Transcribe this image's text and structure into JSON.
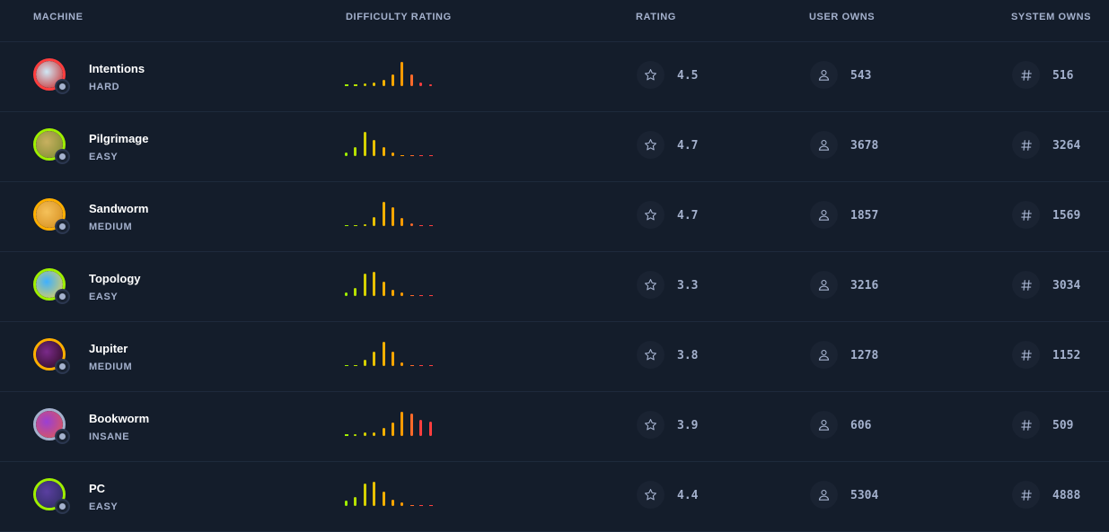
{
  "header": {
    "machine": "MACHINE",
    "difficulty_rating": "DIFFICULTY RATING",
    "rating": "RATING",
    "user_owns": "USER OWNS",
    "system_owns": "SYSTEM OWNS"
  },
  "colors": {
    "background": "#141d2b",
    "divider": "#1e2a3c",
    "muted_text": "#a4b1cd",
    "easy": "#9fef00",
    "medium": "#ffaf00",
    "hard": "#ff3e3e",
    "insane": "#a4b1cd"
  },
  "difficulty_bar_colors": [
    "#9fef00",
    "#b5e000",
    "#d4d000",
    "#e8c000",
    "#f5b000",
    "#ffa500",
    "#ff9a00",
    "#ff6a2a",
    "#ff3e3e",
    "#ff3e3e"
  ],
  "machines": [
    {
      "name": "Intentions",
      "difficulty": "HARD",
      "ring_color": "#ff3e3e",
      "avatar_colors": [
        "#cfe8f5",
        "#c91f1f"
      ],
      "difficulty_votes": [
        0.06,
        0.06,
        0.1,
        0.12,
        0.25,
        0.42,
        0.9,
        0.45,
        0.12,
        0.08
      ],
      "rating": "4.5",
      "user_owns": "543",
      "system_owns": "516"
    },
    {
      "name": "Pilgrimage",
      "difficulty": "EASY",
      "ring_color": "#9fef00",
      "avatar_colors": [
        "#c8b060",
        "#7a8a30"
      ],
      "difficulty_votes": [
        0.15,
        0.35,
        0.9,
        0.6,
        0.35,
        0.12,
        0.04,
        0.02,
        0.02,
        0.02
      ],
      "rating": "4.7",
      "user_owns": "3678",
      "system_owns": "3264"
    },
    {
      "name": "Sandworm",
      "difficulty": "MEDIUM",
      "ring_color": "#ffaf00",
      "avatar_colors": [
        "#f5c15a",
        "#d48a1a"
      ],
      "difficulty_votes": [
        0.02,
        0.02,
        0.08,
        0.35,
        0.9,
        0.7,
        0.3,
        0.1,
        0.02,
        0.02
      ],
      "rating": "4.7",
      "user_owns": "1857",
      "system_owns": "1569"
    },
    {
      "name": "Topology",
      "difficulty": "EASY",
      "ring_color": "#9fef00",
      "avatar_colors": [
        "#3fb0ff",
        "#f2d14a"
      ],
      "difficulty_votes": [
        0.12,
        0.3,
        0.85,
        0.9,
        0.55,
        0.22,
        0.12,
        0.03,
        0.02,
        0.02
      ],
      "rating": "3.3",
      "user_owns": "3216",
      "system_owns": "3034"
    },
    {
      "name": "Jupiter",
      "difficulty": "MEDIUM",
      "ring_color": "#ffaf00",
      "avatar_colors": [
        "#7a2a8a",
        "#2a0a1a"
      ],
      "difficulty_votes": [
        0.03,
        0.05,
        0.22,
        0.55,
        0.9,
        0.55,
        0.15,
        0.03,
        0.02,
        0.02
      ],
      "rating": "3.8",
      "user_owns": "1278",
      "system_owns": "1152"
    },
    {
      "name": "Bookworm",
      "difficulty": "INSANE",
      "ring_color": "#a4b1cd",
      "avatar_colors": [
        "#9a3fd4",
        "#e55a4a"
      ],
      "difficulty_votes": [
        0.06,
        0.08,
        0.12,
        0.15,
        0.3,
        0.5,
        0.9,
        0.85,
        0.6,
        0.55
      ],
      "rating": "3.9",
      "user_owns": "606",
      "system_owns": "509"
    },
    {
      "name": "PC",
      "difficulty": "EASY",
      "ring_color": "#9fef00",
      "avatar_colors": [
        "#5a3fa0",
        "#2a2a5a"
      ],
      "difficulty_votes": [
        0.2,
        0.35,
        0.85,
        0.9,
        0.55,
        0.25,
        0.12,
        0.03,
        0.02,
        0.02
      ],
      "rating": "4.4",
      "user_owns": "5304",
      "system_owns": "4888"
    }
  ],
  "icons": {
    "rating": "star-icon",
    "user_owns": "user-icon",
    "system_owns": "hash-icon"
  }
}
